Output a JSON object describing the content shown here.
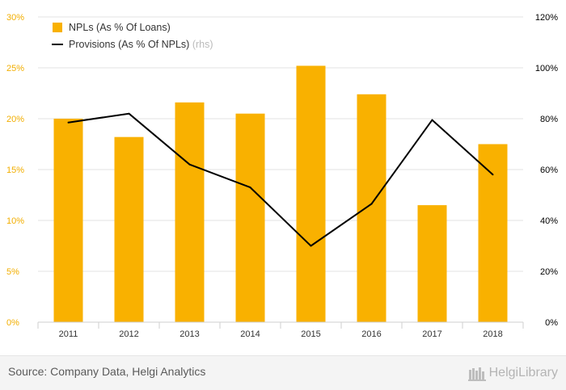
{
  "chart_data": {
    "type": "bar",
    "title": "",
    "categories": [
      "2011",
      "2012",
      "2013",
      "2014",
      "2015",
      "2016",
      "2017",
      "2018"
    ],
    "series": [
      {
        "name": "NPLs (As % Of Loans)",
        "kind": "bar",
        "axis": "left",
        "color": "#f9b100",
        "values": [
          20.0,
          18.2,
          21.6,
          20.5,
          25.2,
          22.4,
          11.5,
          17.5
        ]
      },
      {
        "name": "Provisions (As % Of NPLs)",
        "legend_suffix": "(rhs)",
        "kind": "line",
        "axis": "right",
        "color": "#000000",
        "values": [
          78.5,
          82.0,
          62.0,
          53.0,
          30.0,
          46.5,
          79.5,
          58.0
        ]
      }
    ],
    "y_left": {
      "min": 0,
      "max": 30,
      "step": 5,
      "unit": "%",
      "tick_color": "#f2ae00"
    },
    "y_right": {
      "min": 0,
      "max": 120,
      "step": 20,
      "unit": "%",
      "tick_color": "#000000"
    },
    "grid": true,
    "legend_position": "top-left"
  },
  "footer": {
    "source": "Source: Company Data, Helgi Analytics",
    "brand": "HelgiLibrary"
  }
}
